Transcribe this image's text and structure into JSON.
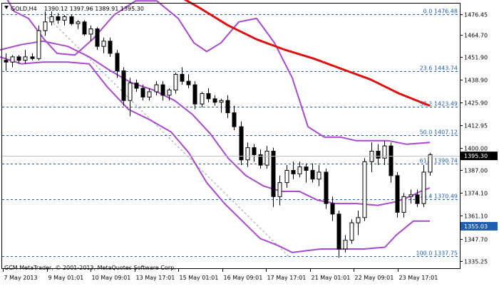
{
  "header": {
    "symbol_label": "GOLD,H4",
    "ohlc": "1390.12 1397.96 1389.91 1395.30"
  },
  "copyright": "GCM MetaTrader, © 2001-2013, MetaQuotes Software Corp.",
  "colors": {
    "background": "#ffffff",
    "bull_body": "#ffffff",
    "bear_body": "#000000",
    "bollinger": "#a64ac9",
    "moving_average": "#dd1010",
    "fibo": "#1f5fae",
    "grid_tick": "#000000",
    "current_price_tag": "#000000",
    "fibo_price_tag": "#1f5fae"
  },
  "price_axis": {
    "min": 1331.0,
    "max": 1482.5,
    "ticks": [
      "1476.45",
      "1464.70",
      "1451.90",
      "1438.90",
      "1425.90",
      "1412.95",
      "1400.00",
      "1387.00",
      "1374.10",
      "1361.10",
      "1347.70",
      "1335.25"
    ],
    "current_price": "1395.30",
    "tag_price": "1355.03"
  },
  "time_axis": {
    "labels": [
      "7 May 2013",
      "9 May 01:01",
      "10 May 09:01",
      "13 May 17:01",
      "15 May 01:01",
      "16 May 09:01",
      "17 May 17:01",
      "21 May 01:01",
      "22 May 09:01",
      "23 May 17:01"
    ]
  },
  "fibonacci": [
    {
      "label": "0.0 1476.48",
      "price": 1476.48
    },
    {
      "label": "23.6 1443.74",
      "price": 1443.74
    },
    {
      "label": "38.2 1423.49",
      "price": 1423.49
    },
    {
      "label": "50.0 1407.12",
      "price": 1407.12
    },
    {
      "label": "61.8 1390.74",
      "price": 1390.74
    },
    {
      "label": "76.4 1370.49",
      "price": 1370.49
    },
    {
      "label": "100.0 1337.75",
      "price": 1337.75
    }
  ],
  "chart_data": {
    "type": "candlestick",
    "symbol": "GOLD",
    "timeframe": "H4",
    "bar_count": 66,
    "candles": [
      [
        1450,
        1454,
        1444,
        1449
      ],
      [
        1449,
        1453,
        1446,
        1452
      ],
      [
        1452,
        1453,
        1448,
        1450
      ],
      [
        1450,
        1456,
        1448,
        1452
      ],
      [
        1452,
        1454,
        1450,
        1451
      ],
      [
        1451,
        1470,
        1450,
        1467
      ],
      [
        1467,
        1478,
        1464,
        1472
      ],
      [
        1472,
        1478,
        1470,
        1475
      ],
      [
        1475,
        1477,
        1471,
        1473
      ],
      [
        1473,
        1476,
        1470,
        1475
      ],
      [
        1475,
        1476,
        1470,
        1471
      ],
      [
        1471,
        1473,
        1468,
        1472
      ],
      [
        1472,
        1473,
        1464,
        1465
      ],
      [
        1465,
        1470,
        1461,
        1468
      ],
      [
        1468,
        1469,
        1456,
        1458
      ],
      [
        1458,
        1463,
        1454,
        1461
      ],
      [
        1461,
        1463,
        1452,
        1454
      ],
      [
        1454,
        1456,
        1440,
        1444
      ],
      [
        1444,
        1446,
        1424,
        1427
      ],
      [
        1427,
        1440,
        1418,
        1437
      ],
      [
        1437,
        1439,
        1432,
        1434
      ],
      [
        1434,
        1436,
        1427,
        1429
      ],
      [
        1429,
        1434,
        1427,
        1432
      ],
      [
        1432,
        1438,
        1430,
        1436
      ],
      [
        1436,
        1438,
        1427,
        1430
      ],
      [
        1430,
        1434,
        1427,
        1433
      ],
      [
        1433,
        1443,
        1431,
        1442
      ],
      [
        1442,
        1446,
        1436,
        1438
      ],
      [
        1438,
        1442,
        1434,
        1436
      ],
      [
        1436,
        1438,
        1422,
        1425
      ],
      [
        1425,
        1432,
        1423,
        1431
      ],
      [
        1431,
        1434,
        1426,
        1428
      ],
      [
        1428,
        1430,
        1424,
        1426
      ],
      [
        1426,
        1428,
        1420,
        1427
      ],
      [
        1427,
        1430,
        1417,
        1420
      ],
      [
        1420,
        1424,
        1410,
        1412
      ],
      [
        1412,
        1415,
        1390,
        1393
      ],
      [
        1393,
        1403,
        1389,
        1400
      ],
      [
        1400,
        1402,
        1392,
        1396
      ],
      [
        1396,
        1399,
        1388,
        1390
      ],
      [
        1390,
        1401,
        1388,
        1398
      ],
      [
        1398,
        1400,
        1366,
        1372
      ],
      [
        1372,
        1384,
        1367,
        1380
      ],
      [
        1380,
        1390,
        1377,
        1387
      ],
      [
        1387,
        1392,
        1382,
        1385
      ],
      [
        1385,
        1392,
        1383,
        1389
      ],
      [
        1389,
        1391,
        1380,
        1387
      ],
      [
        1387,
        1391,
        1380,
        1382
      ],
      [
        1382,
        1390,
        1378,
        1386
      ],
      [
        1386,
        1388,
        1365,
        1368
      ],
      [
        1368,
        1372,
        1358,
        1362
      ],
      [
        1362,
        1364,
        1337,
        1342
      ],
      [
        1342,
        1350,
        1340,
        1347
      ],
      [
        1347,
        1359,
        1345,
        1357
      ],
      [
        1357,
        1364,
        1350,
        1360
      ],
      [
        1360,
        1394,
        1358,
        1392
      ],
      [
        1392,
        1403,
        1386,
        1398
      ],
      [
        1398,
        1402,
        1390,
        1394
      ],
      [
        1394,
        1404,
        1390,
        1401
      ],
      [
        1401,
        1403,
        1380,
        1384
      ],
      [
        1384,
        1386,
        1360,
        1363
      ],
      [
        1363,
        1374,
        1360,
        1372
      ],
      [
        1372,
        1376,
        1368,
        1373
      ],
      [
        1373,
        1376,
        1366,
        1368
      ],
      [
        1368,
        1390,
        1366,
        1386
      ],
      [
        1386,
        1397,
        1384,
        1396
      ]
    ],
    "bollinger_upper": [
      [
        0,
        1492
      ],
      [
        20,
        1478
      ],
      [
        40,
        1474
      ],
      [
        62,
        1462
      ],
      [
        80,
        1454
      ],
      [
        105,
        1453
      ],
      [
        130,
        1462
      ],
      [
        160,
        1476
      ],
      [
        190,
        1484
      ],
      [
        220,
        1484
      ],
      [
        250,
        1474
      ],
      [
        272,
        1460
      ],
      [
        290,
        1455
      ],
      [
        310,
        1460
      ],
      [
        335,
        1472
      ],
      [
        360,
        1474
      ],
      [
        385,
        1460
      ],
      [
        410,
        1440
      ],
      [
        432,
        1412
      ],
      [
        455,
        1406
      ],
      [
        478,
        1406
      ],
      [
        500,
        1404
      ],
      [
        520,
        1404
      ],
      [
        545,
        1404
      ],
      [
        570,
        1402
      ],
      [
        603,
        1403
      ]
    ],
    "bollinger_middle": [
      [
        0,
        1456
      ],
      [
        30,
        1459
      ],
      [
        60,
        1461
      ],
      [
        95,
        1458
      ],
      [
        125,
        1452
      ],
      [
        155,
        1444
      ],
      [
        185,
        1437
      ],
      [
        215,
        1433
      ],
      [
        245,
        1427
      ],
      [
        270,
        1419
      ],
      [
        295,
        1408
      ],
      [
        320,
        1394
      ],
      [
        345,
        1384
      ],
      [
        370,
        1378
      ],
      [
        395,
        1375
      ],
      [
        420,
        1375
      ],
      [
        445,
        1370
      ],
      [
        470,
        1368
      ],
      [
        500,
        1368
      ],
      [
        530,
        1367
      ],
      [
        555,
        1369
      ],
      [
        575,
        1372
      ],
      [
        590,
        1375
      ],
      [
        603,
        1377
      ]
    ],
    "bollinger_lower": [
      [
        0,
        1452
      ],
      [
        30,
        1448
      ],
      [
        60,
        1449
      ],
      [
        95,
        1449
      ],
      [
        125,
        1448
      ],
      [
        150,
        1435
      ],
      [
        180,
        1422
      ],
      [
        210,
        1416
      ],
      [
        240,
        1409
      ],
      [
        265,
        1397
      ],
      [
        290,
        1380
      ],
      [
        315,
        1368
      ],
      [
        340,
        1358
      ],
      [
        365,
        1348
      ],
      [
        390,
        1344
      ],
      [
        410,
        1340
      ],
      [
        430,
        1341
      ],
      [
        450,
        1342
      ],
      [
        480,
        1342
      ],
      [
        510,
        1342
      ],
      [
        540,
        1343
      ],
      [
        556,
        1350
      ],
      [
        580,
        1358
      ],
      [
        603,
        1358
      ]
    ],
    "moving_average": [
      [
        237,
        1490
      ],
      [
        280,
        1480
      ],
      [
        320,
        1470
      ],
      [
        360,
        1462
      ],
      [
        400,
        1456
      ],
      [
        440,
        1451
      ],
      [
        480,
        1445
      ],
      [
        520,
        1439
      ],
      [
        560,
        1431
      ],
      [
        603,
        1424
      ]
    ],
    "fibo_diagonal": [
      [
        62,
        1476.48
      ],
      [
        405,
        1337.75
      ]
    ]
  }
}
